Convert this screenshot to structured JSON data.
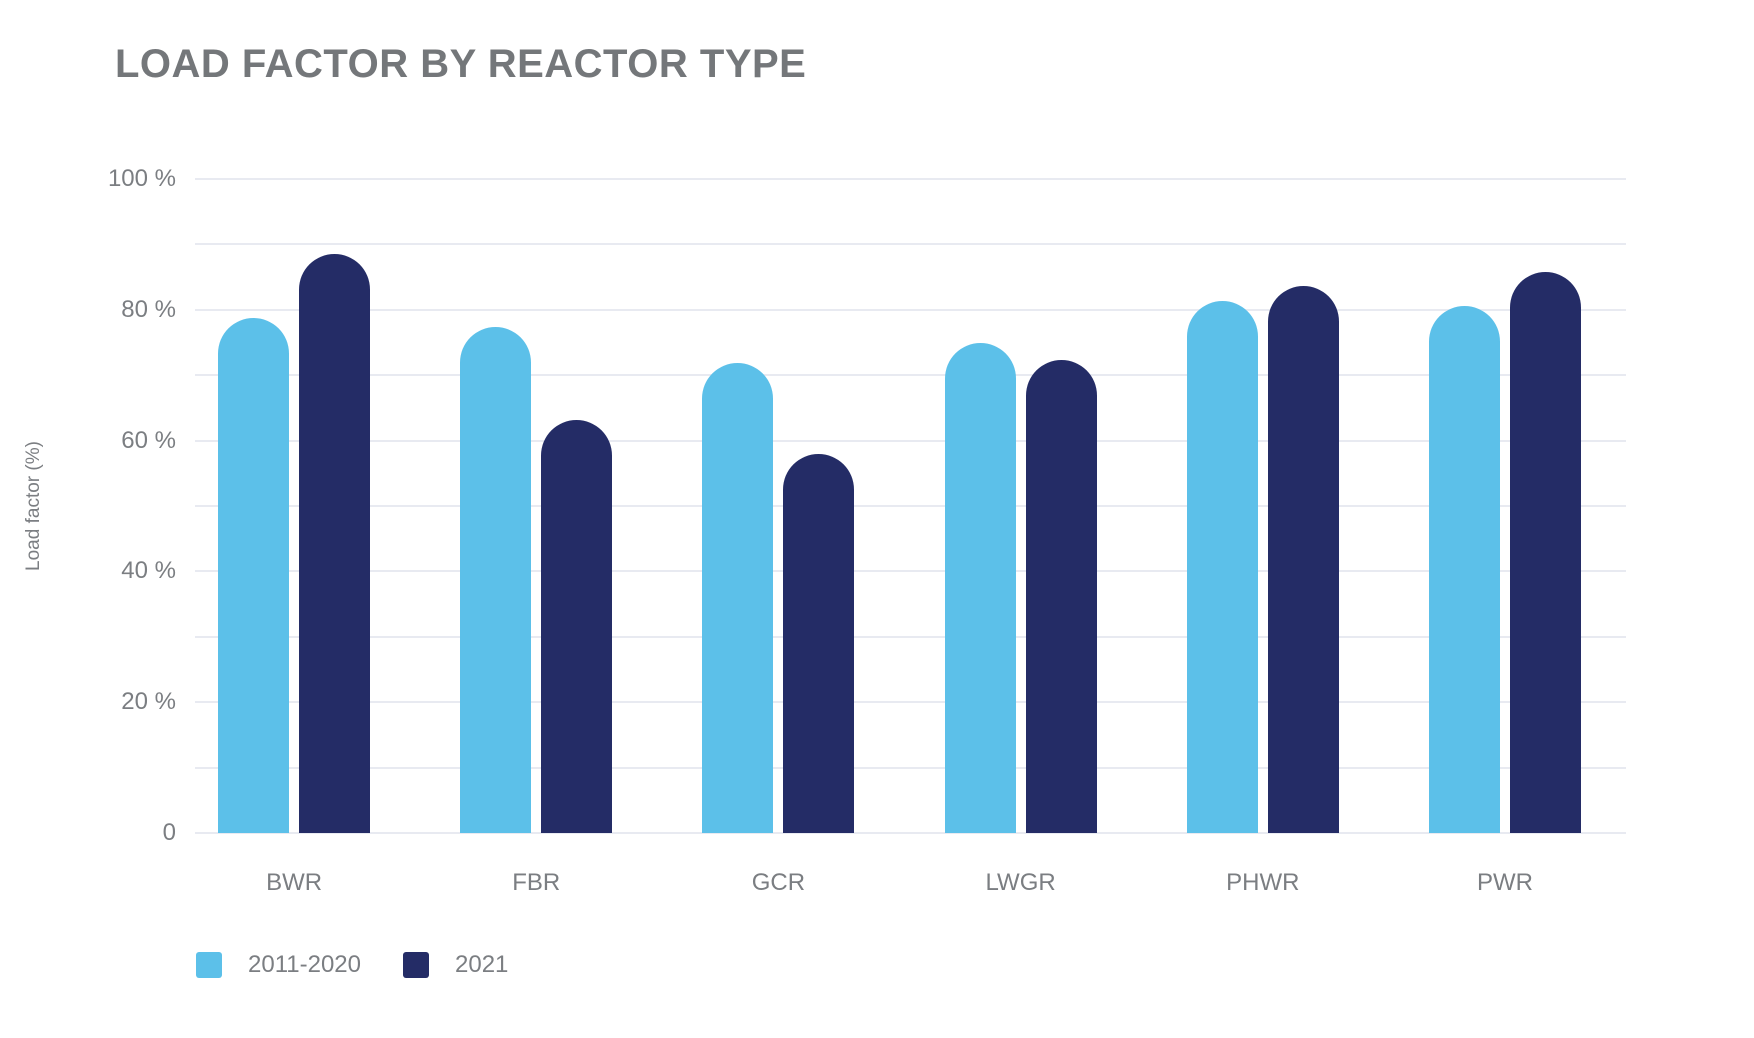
{
  "chart_data": {
    "type": "bar",
    "title": "LOAD FACTOR BY REACTOR TYPE",
    "ylabel": "Load factor (%)",
    "ylim": [
      0,
      100
    ],
    "grid": {
      "orientation": "horizontal",
      "minor_step": 10,
      "color": "#e8eaf1"
    },
    "yticks": [
      {
        "value": 100,
        "label": "100 %"
      },
      {
        "value": 80,
        "label": "80 %"
      },
      {
        "value": 60,
        "label": "60 %"
      },
      {
        "value": 40,
        "label": "40 %"
      },
      {
        "value": 20,
        "label": "20 %"
      },
      {
        "value": 0,
        "label": "0"
      }
    ],
    "categories": [
      "BWR",
      "FBR",
      "GCR",
      "LWGR",
      "PHWR",
      "PWR"
    ],
    "series": [
      {
        "name": "2011-2020",
        "color": "#5cc0e9",
        "values": [
          78.7,
          77.4,
          71.9,
          74.9,
          81.3,
          80.6
        ]
      },
      {
        "name": "2021",
        "color": "#242c66",
        "values": [
          88.6,
          63.2,
          58.0,
          72.4,
          83.7,
          85.8
        ]
      }
    ],
    "legend_position": "bottom-left"
  },
  "colors": {
    "background": "#ffffff",
    "title_text": "#74777a",
    "axis_text": "#7b7e82",
    "gridline": "#e8eaf1",
    "series_2011_2020": "#5cc0e9",
    "series_2021": "#242c66"
  }
}
